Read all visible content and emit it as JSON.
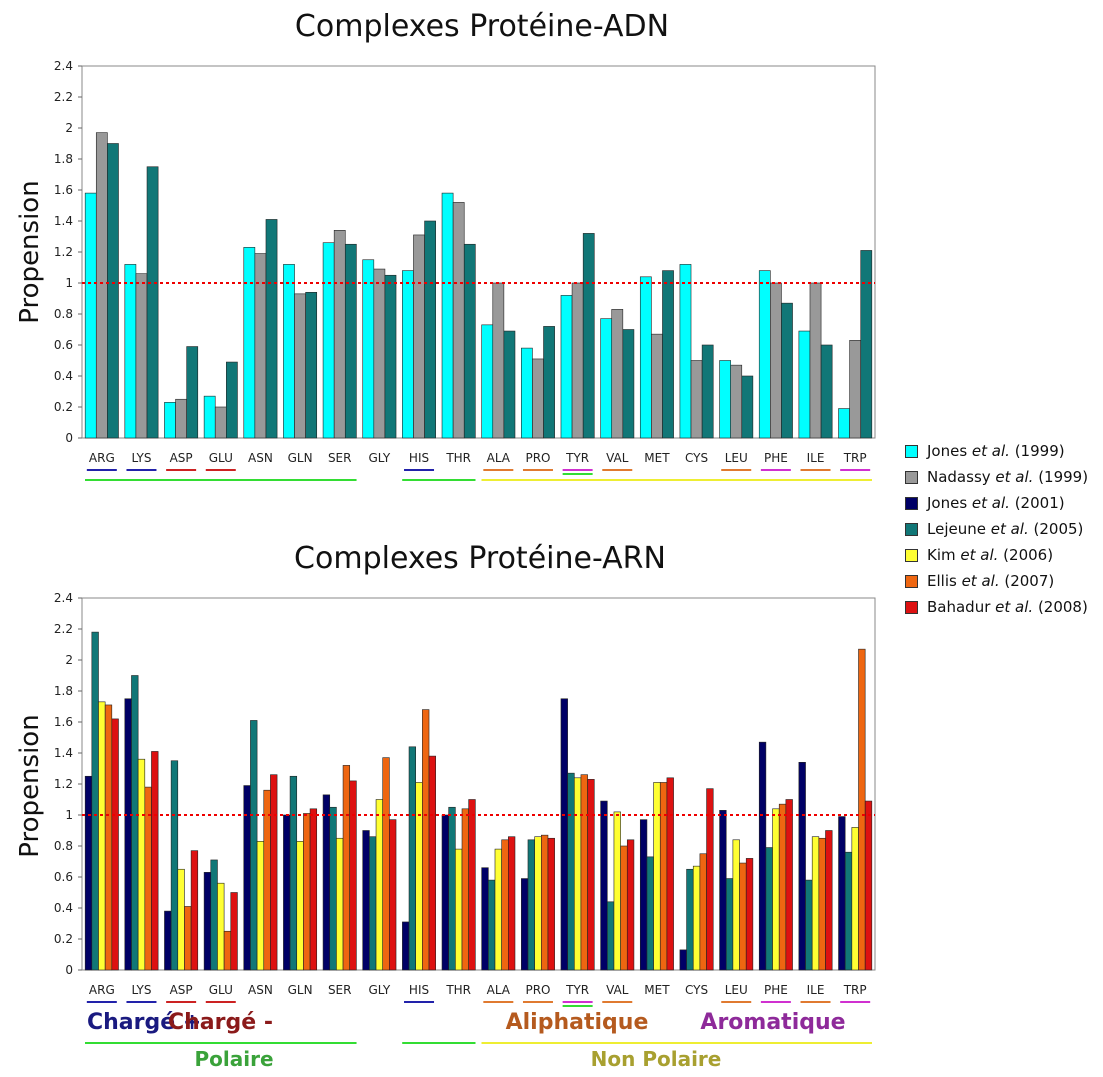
{
  "charts": [
    {
      "title": "Complexes Protéine-ADN",
      "ylabel": "Propension"
    },
    {
      "title": "Complexes Protéine-ARN",
      "ylabel": "Propension"
    }
  ],
  "legend": [
    {
      "pre": "Jones ",
      "em": "et al.",
      "post": " (1999)",
      "color": "#00ffff"
    },
    {
      "pre": "Nadassy ",
      "em": "et al.",
      "post": " (1999)",
      "color": "#999999"
    },
    {
      "pre": "Jones ",
      "em": "et al.",
      "post": " (2001)",
      "color": "#000066"
    },
    {
      "pre": "Lejeune ",
      "em": "et al.",
      "post": " (2005)",
      "color": "#117777"
    },
    {
      "pre": "Kim ",
      "em": "et al.",
      "post": " (2006)",
      "color": "#ffff33"
    },
    {
      "pre": "Ellis ",
      "em": "et al.",
      "post": " (2007)",
      "color": "#ee6611"
    },
    {
      "pre": "Bahadur ",
      "em": "et al.",
      "post": " (2008)",
      "color": "#dd1111"
    }
  ],
  "group_labels": [
    {
      "text": "Chargé +",
      "color": "#1a1a80"
    },
    {
      "text": "Chargé -",
      "color": "#8b1a1a"
    },
    {
      "text": "Aliphatique",
      "color": "#b55a1e"
    },
    {
      "text": "Aromatique",
      "color": "#8e2a9a"
    },
    {
      "text": "Polaire",
      "color": "#3aa23a"
    },
    {
      "text": "Non Polaire",
      "color": "#a8a030"
    }
  ],
  "underline_colors": {
    "charge_plus": "#2222aa",
    "charge_minus": "#cc2222",
    "aliphatic": "#e07a30",
    "aromatic": "#d030d0",
    "polar": "#33dd33",
    "nonpolar": "#eeee33"
  },
  "reference_line_color": "#ee0000",
  "chart_data": [
    {
      "type": "bar",
      "title": "Complexes Protéine-ADN",
      "ylabel": "Propension",
      "xlabel": "",
      "ylim": [
        0,
        2.4
      ],
      "yticks": [
        0,
        0.2,
        0.4,
        0.6,
        0.8,
        1,
        1.2,
        1.4,
        1.6,
        1.8,
        2,
        2.2,
        2.4
      ],
      "grid": false,
      "reference_line": 1,
      "categories": [
        "ARG",
        "LYS",
        "ASP",
        "GLU",
        "ASN",
        "GLN",
        "SER",
        "GLY",
        "HIS",
        "THR",
        "ALA",
        "PRO",
        "TYR",
        "VAL",
        "MET",
        "CYS",
        "LEU",
        "PHE",
        "ILE",
        "TRP"
      ],
      "series": [
        {
          "name": "Jones et al. (1999)",
          "color": "#00ffff",
          "values": [
            1.58,
            1.12,
            0.23,
            0.27,
            1.23,
            1.12,
            1.26,
            1.15,
            1.08,
            1.58,
            0.73,
            0.58,
            0.92,
            0.77,
            1.04,
            1.12,
            0.5,
            1.08,
            0.69,
            0.19
          ]
        },
        {
          "name": "Nadassy et al. (1999)",
          "color": "#999999",
          "values": [
            1.97,
            1.06,
            0.25,
            0.2,
            1.19,
            0.93,
            1.34,
            1.09,
            1.31,
            1.52,
            1.0,
            0.51,
            1.0,
            0.83,
            0.67,
            0.5,
            0.47,
            1.0,
            1.0,
            0.63
          ]
        },
        {
          "name": "Lejeune et al. (2005)",
          "color": "#117777",
          "values": [
            1.9,
            1.75,
            0.59,
            0.49,
            1.41,
            0.94,
            1.25,
            1.05,
            1.4,
            1.25,
            0.69,
            0.72,
            1.32,
            0.7,
            1.08,
            0.6,
            0.4,
            0.87,
            0.6,
            1.21
          ]
        }
      ]
    },
    {
      "type": "bar",
      "title": "Complexes Protéine-ARN",
      "ylabel": "Propension",
      "xlabel": "",
      "ylim": [
        0,
        2.4
      ],
      "yticks": [
        0,
        0.2,
        0.4,
        0.6,
        0.8,
        1,
        1.2,
        1.4,
        1.6,
        1.8,
        2,
        2.2,
        2.4
      ],
      "grid": false,
      "reference_line": 1,
      "categories": [
        "ARG",
        "LYS",
        "ASP",
        "GLU",
        "ASN",
        "GLN",
        "SER",
        "GLY",
        "HIS",
        "THR",
        "ALA",
        "PRO",
        "TYR",
        "VAL",
        "MET",
        "CYS",
        "LEU",
        "PHE",
        "ILE",
        "TRP"
      ],
      "series": [
        {
          "name": "Jones et al. (2001)",
          "color": "#000066",
          "values": [
            1.25,
            1.75,
            0.38,
            0.63,
            1.19,
            1.0,
            1.13,
            0.9,
            0.31,
            1.0,
            0.66,
            0.59,
            1.75,
            1.09,
            0.97,
            0.13,
            1.03,
            1.47,
            1.34,
            0.99
          ]
        },
        {
          "name": "Lejeune et al. (2005)",
          "color": "#117777",
          "values": [
            2.18,
            1.9,
            1.35,
            0.71,
            1.61,
            1.25,
            1.05,
            0.86,
            1.44,
            1.05,
            0.58,
            0.84,
            1.27,
            0.44,
            0.73,
            0.65,
            0.59,
            0.79,
            0.58,
            0.76
          ]
        },
        {
          "name": "Kim et al. (2006)",
          "color": "#ffff33",
          "values": [
            1.73,
            1.36,
            0.65,
            0.56,
            0.83,
            0.83,
            0.85,
            1.1,
            1.21,
            0.78,
            0.78,
            0.86,
            1.24,
            1.02,
            1.21,
            0.67,
            0.84,
            1.04,
            0.86,
            0.92
          ]
        },
        {
          "name": "Ellis et al. (2007)",
          "color": "#ee6611",
          "values": [
            1.71,
            1.18,
            0.41,
            0.25,
            1.16,
            1.01,
            1.32,
            1.37,
            1.68,
            1.04,
            0.84,
            0.87,
            1.26,
            0.8,
            1.21,
            0.75,
            0.69,
            1.07,
            0.85,
            2.07
          ]
        },
        {
          "name": "Bahadur et al. (2008)",
          "color": "#dd1111",
          "values": [
            1.62,
            1.41,
            0.77,
            0.5,
            1.26,
            1.04,
            1.22,
            0.97,
            1.38,
            1.1,
            0.86,
            0.85,
            1.23,
            0.84,
            1.24,
            1.17,
            0.72,
            1.1,
            0.9,
            1.09
          ]
        }
      ]
    }
  ]
}
